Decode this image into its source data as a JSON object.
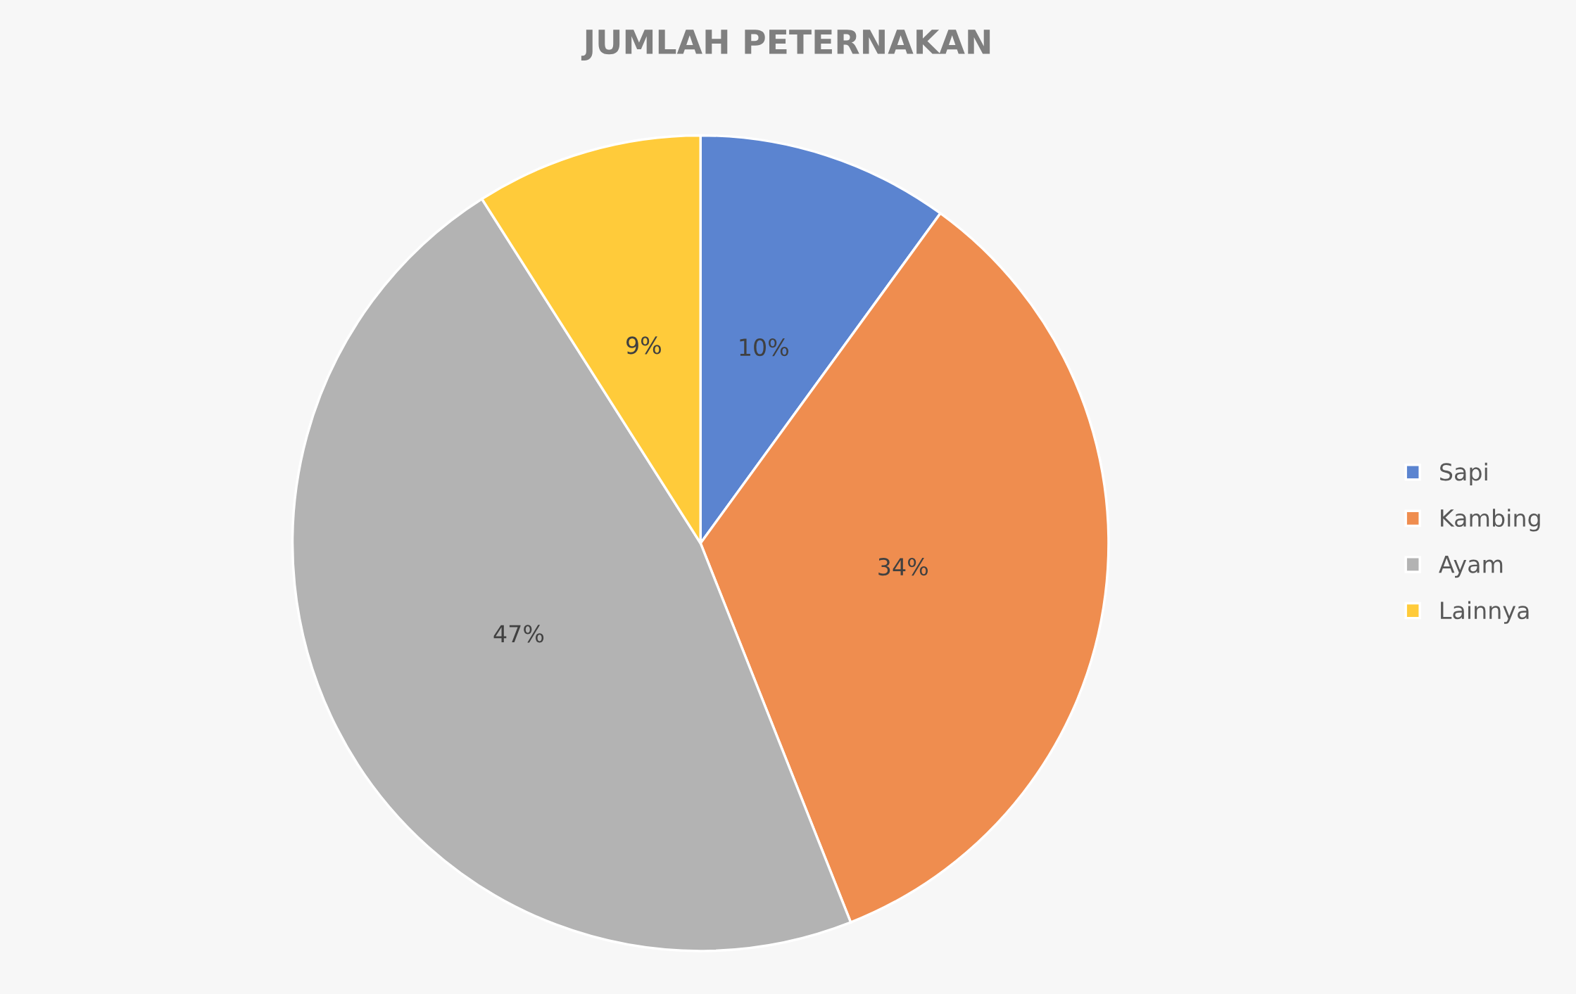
{
  "chart_data": {
    "type": "pie",
    "title": "JUMLAH PETERNAKAN",
    "categories": [
      "Sapi",
      "Kambing",
      "Ayam",
      "Lainnya"
    ],
    "values": [
      10,
      34,
      47,
      9
    ],
    "colors": [
      "#5b84d0",
      "#ef8d4f",
      "#b3b3b3",
      "#ffcb3a"
    ],
    "value_labels": [
      "10%",
      "34%",
      "47%",
      "9%"
    ],
    "legend": "right"
  }
}
